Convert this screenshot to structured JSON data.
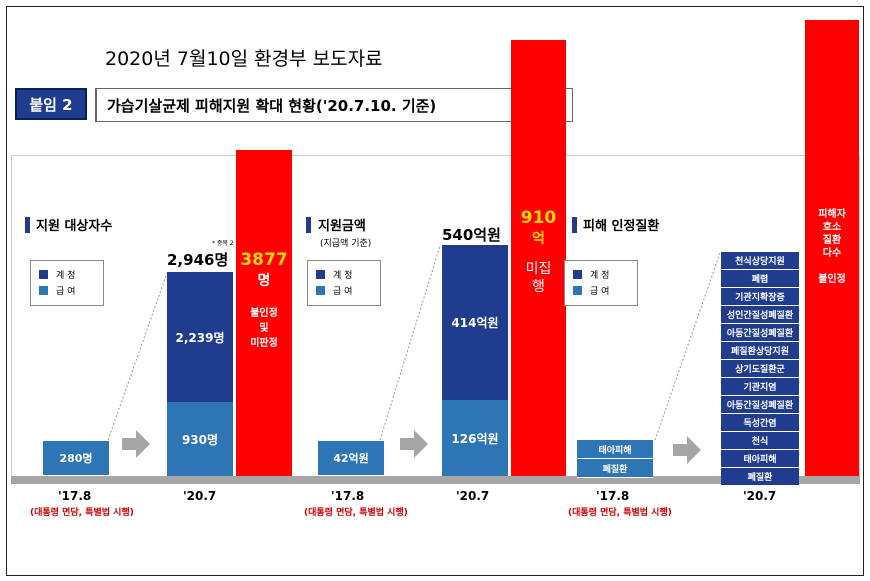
{
  "header": {
    "date_title": "2020년 7월10일 환경부 보도자료",
    "tag": "붙임 2",
    "title": "가습기살균제 피해지원 확대 현황('20.7.10. 기준)"
  },
  "section1": {
    "title": "지원 대상자수",
    "legend": {
      "total": "계 정",
      "benefit": "급 여"
    },
    "total_2020": "2,946명",
    "dup_note": "* 중복 2",
    "bar_2017": "280명",
    "upper_2020": "2,239명",
    "lower_2020": "930명",
    "red_number": "3877",
    "red_unit": "명",
    "red_text": "불인정\n및\n미판정"
  },
  "section2": {
    "title": "지원금액",
    "subtitle": "(지급액 기준)",
    "legend": {
      "total": "계 정",
      "benefit": "급 여"
    },
    "total_2020": "540억원",
    "bar_2017": "42억원",
    "upper_2020": "414억원",
    "lower_2020": "126억원",
    "red_number": "910",
    "red_unit": "억",
    "red_text": "미집\n행"
  },
  "section3": {
    "title": "피해 인정질환",
    "legend": {
      "total": "계 정",
      "benefit": "급 여"
    },
    "bars_2017": [
      "태아피해",
      "폐질환"
    ],
    "bars_2020": [
      "천식상당지원",
      "폐렴",
      "기관지확장증",
      "성인간질성폐질환",
      "아동간질성폐질환",
      "폐질환상당지원",
      "상기도질환군",
      "기관지염",
      "아동간질성폐질환",
      "독성간염",
      "천식",
      "태아피해",
      "폐질환"
    ],
    "red_text": "피해자\n호소\n질환\n다수\n\n불인정"
  },
  "years": {
    "y2017": "'17.8",
    "y2020": "'20.7",
    "note_2017": "(대통령 면담, 특별법 시행)"
  }
}
